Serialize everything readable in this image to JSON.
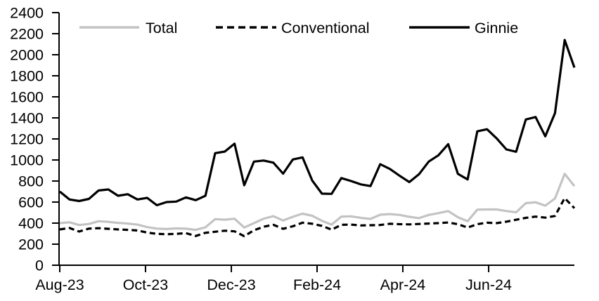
{
  "chart_data": {
    "type": "line",
    "title": "",
    "x_axis": {
      "tick_labels": [
        "Aug-23",
        "Oct-23",
        "Dec-23",
        "Feb-24",
        "Apr-24",
        "Jun-24"
      ],
      "tick_index_positions": [
        0,
        8.83,
        17.67,
        26.5,
        35.33,
        44.17
      ]
    },
    "y_axis": {
      "min": 0,
      "max": 2400,
      "step": 200
    },
    "legend": {
      "position": "top",
      "entries": [
        "Total",
        "Conventional",
        "Ginnie"
      ]
    },
    "grid": false,
    "series": [
      {
        "name": "Total",
        "color": "#c3c3c3",
        "style": "solid",
        "values": [
          400,
          408,
          382,
          392,
          418,
          412,
          402,
          396,
          386,
          362,
          348,
          344,
          350,
          347,
          336,
          360,
          438,
          433,
          442,
          358,
          400,
          442,
          466,
          425,
          460,
          490,
          470,
          422,
          386,
          462,
          465,
          450,
          440,
          480,
          486,
          478,
          460,
          447,
          478,
          495,
          515,
          456,
          418,
          528,
          530,
          530,
          515,
          503,
          590,
          598,
          566,
          634,
          868,
          752
        ]
      },
      {
        "name": "Conventional",
        "color": "#000000",
        "style": "dashed",
        "values": [
          340,
          354,
          320,
          348,
          352,
          346,
          340,
          336,
          330,
          310,
          298,
          295,
          298,
          305,
          278,
          308,
          318,
          328,
          322,
          276,
          332,
          366,
          384,
          346,
          370,
          404,
          394,
          374,
          338,
          384,
          386,
          378,
          380,
          382,
          394,
          390,
          388,
          392,
          396,
          400,
          406,
          390,
          358,
          390,
          404,
          400,
          414,
          432,
          450,
          462,
          452,
          468,
          638,
          542
        ]
      },
      {
        "name": "Ginnie",
        "color": "#000000",
        "style": "solid",
        "values": [
          700,
          625,
          610,
          630,
          710,
          720,
          660,
          675,
          625,
          640,
          570,
          600,
          605,
          645,
          618,
          660,
          1065,
          1080,
          1155,
          760,
          985,
          995,
          975,
          870,
          1005,
          1025,
          805,
          680,
          678,
          828,
          800,
          768,
          752,
          960,
          915,
          850,
          790,
          865,
          985,
          1045,
          1150,
          868,
          815,
          1272,
          1292,
          1205,
          1100,
          1078,
          1385,
          1408,
          1225,
          1445,
          2140,
          1878
        ]
      }
    ]
  }
}
